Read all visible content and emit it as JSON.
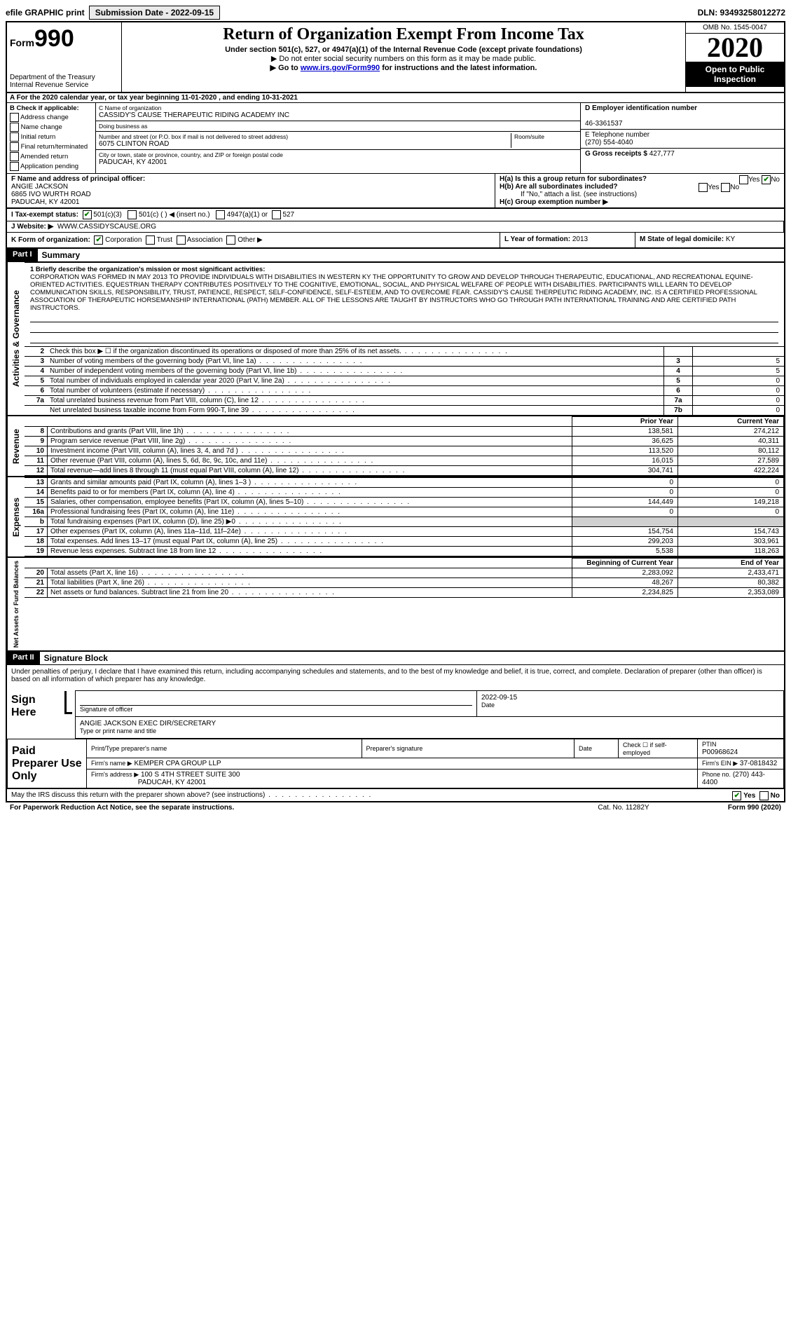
{
  "top": {
    "efile": "efile GRAPHIC print",
    "submission_label": "Submission Date - 2022-09-15",
    "dln": "DLN: 93493258012272"
  },
  "header": {
    "form_prefix": "Form",
    "form_number": "990",
    "dept1": "Department of the Treasury",
    "dept2": "Internal Revenue Service",
    "title": "Return of Organization Exempt From Income Tax",
    "sub": "Under section 501(c), 527, or 4947(a)(1) of the Internal Revenue Code (except private foundations)",
    "note1": "▶ Do not enter social security numbers on this form as it may be made public.",
    "note2_pre": "▶ Go to ",
    "note2_link": "www.irs.gov/Form990",
    "note2_post": " for instructions and the latest information.",
    "omb": "OMB No. 1545-0047",
    "year": "2020",
    "open": "Open to Public Inspection"
  },
  "period": "A For the 2020 calendar year, or tax year beginning 11-01-2020   , and ending 10-31-2021",
  "B": {
    "label": "B Check if applicable:",
    "opts": [
      "Address change",
      "Name change",
      "Initial return",
      "Final return/terminated",
      "Amended return",
      "Application pending"
    ]
  },
  "C": {
    "name_label": "C Name of organization",
    "name": "CASSIDY'S CAUSE THERAPEUTIC RIDING ACADEMY INC",
    "dba_label": "Doing business as",
    "addr_label": "Number and street (or P.O. box if mail is not delivered to street address)",
    "room_label": "Room/suite",
    "addr": "6075 CLINTON ROAD",
    "city_label": "City or town, state or province, country, and ZIP or foreign postal code",
    "city": "PADUCAH, KY  42001"
  },
  "D": {
    "label": "D Employer identification number",
    "val": "46-3361537"
  },
  "E": {
    "label": "E Telephone number",
    "val": "(270) 554-4040"
  },
  "G": {
    "label": "G Gross receipts $",
    "val": "427,777"
  },
  "F": {
    "label": "F  Name and address of principal officer:",
    "name": "ANGIE JACKSON",
    "addr1": "6865 IVO WURTH ROAD",
    "addr2": "PADUCAH, KY  42001"
  },
  "H": {
    "a": "H(a)  Is this a group return for subordinates?",
    "b": "H(b)  Are all subordinates included?",
    "note": "If \"No,\" attach a list. (see instructions)",
    "c": "H(c)  Group exemption number ▶",
    "yes": "Yes",
    "no": "No"
  },
  "I": {
    "label": "I   Tax-exempt status:",
    "opts": [
      "501(c)(3)",
      "501(c) (  ) ◀ (insert no.)",
      "4947(a)(1) or",
      "527"
    ]
  },
  "J": {
    "label": "J   Website: ▶",
    "val": "WWW.CASSIDYSCAUSE.ORG"
  },
  "K": {
    "label": "K Form of organization:",
    "opts": [
      "Corporation",
      "Trust",
      "Association",
      "Other ▶"
    ]
  },
  "L": {
    "label": "L Year of formation:",
    "val": "2013"
  },
  "M": {
    "label": "M State of legal domicile:",
    "val": "KY"
  },
  "part1": {
    "header": "Part I",
    "title": "Summary",
    "q1": "1  Briefly describe the organization's mission or most significant activities:",
    "mission": "CORPORATION WAS FORMED IN MAY 2013 TO PROVIDE INDIVIDUALS WITH DISABILITIES IN WESTERN KY THE OPPORTUNITY TO GROW AND DEVELOP THROUGH THERAPEUTIC, EDUCATIONAL, AND RECREATIONAL EQUINE-ORIENTED ACTIVITIES. EQUESTRIAN THERAPY CONTRIBUTES POSITIVELY TO THE COGNITIVE, EMOTIONAL, SOCIAL, AND PHYSICAL WELFARE OF PEOPLE WITH DISABILITIES. PARTICIPANTS WILL LEARN TO DEVELOP COMMUNICATION SKILLS, RESPONSIBILITY, TRUST, PATIENCE, RESPECT, SELF-CONFIDENCE, SELF-ESTEEM, AND TO OVERCOME FEAR. CASSIDY'S CAUSE THERPEUTIC RIDING ACADEMY, INC. IS A CERTIFIED PROFESSIONAL ASSOCIATION OF THERAPEUTIC HORSEMANSHIP INTERNATIONAL (PATH) MEMBER. ALL OF THE LESSONS ARE TAUGHT BY INSTRUCTORS WHO GO THROUGH PATH INTERNATIONAL TRAINING AND ARE CERTIFIED PATH INSTRUCTORS."
  },
  "side": {
    "gov": "Activities & Governance",
    "rev": "Revenue",
    "exp": "Expenses",
    "net": "Net Assets or Fund Balances"
  },
  "gov_lines": [
    {
      "n": "2",
      "d": "Check this box ▶ ☐ if the organization discontinued its operations or disposed of more than 25% of its net assets.",
      "box": "",
      "v": ""
    },
    {
      "n": "3",
      "d": "Number of voting members of the governing body (Part VI, line 1a)",
      "box": "3",
      "v": "5"
    },
    {
      "n": "4",
      "d": "Number of independent voting members of the governing body (Part VI, line 1b)",
      "box": "4",
      "v": "5"
    },
    {
      "n": "5",
      "d": "Total number of individuals employed in calendar year 2020 (Part V, line 2a)",
      "box": "5",
      "v": "0"
    },
    {
      "n": "6",
      "d": "Total number of volunteers (estimate if necessary)",
      "box": "6",
      "v": "0"
    },
    {
      "n": "7a",
      "d": "Total unrelated business revenue from Part VIII, column (C), line 12",
      "box": "7a",
      "v": "0"
    },
    {
      "n": "",
      "d": "Net unrelated business taxable income from Form 990-T, line 39",
      "box": "7b",
      "v": "0"
    }
  ],
  "fin_headers": {
    "py": "Prior Year",
    "cy": "Current Year"
  },
  "rev_lines": [
    {
      "n": "8",
      "d": "Contributions and grants (Part VIII, line 1h)",
      "py": "138,581",
      "cy": "274,212"
    },
    {
      "n": "9",
      "d": "Program service revenue (Part VIII, line 2g)",
      "py": "36,625",
      "cy": "40,311"
    },
    {
      "n": "10",
      "d": "Investment income (Part VIII, column (A), lines 3, 4, and 7d )",
      "py": "113,520",
      "cy": "80,112"
    },
    {
      "n": "11",
      "d": "Other revenue (Part VIII, column (A), lines 5, 6d, 8c, 9c, 10c, and 11e)",
      "py": "16,015",
      "cy": "27,589"
    },
    {
      "n": "12",
      "d": "Total revenue—add lines 8 through 11 (must equal Part VIII, column (A), line 12)",
      "py": "304,741",
      "cy": "422,224"
    }
  ],
  "exp_lines": [
    {
      "n": "13",
      "d": "Grants and similar amounts paid (Part IX, column (A), lines 1–3 )",
      "py": "0",
      "cy": "0"
    },
    {
      "n": "14",
      "d": "Benefits paid to or for members (Part IX, column (A), line 4)",
      "py": "0",
      "cy": "0"
    },
    {
      "n": "15",
      "d": "Salaries, other compensation, employee benefits (Part IX, column (A), lines 5–10)",
      "py": "144,449",
      "cy": "149,218"
    },
    {
      "n": "16a",
      "d": "Professional fundraising fees (Part IX, column (A), line 11e)",
      "py": "0",
      "cy": "0"
    },
    {
      "n": "b",
      "d": "Total fundraising expenses (Part IX, column (D), line 25) ▶0",
      "py": "",
      "cy": "",
      "shade": true
    },
    {
      "n": "17",
      "d": "Other expenses (Part IX, column (A), lines 11a–11d, 11f–24e)",
      "py": "154,754",
      "cy": "154,743"
    },
    {
      "n": "18",
      "d": "Total expenses. Add lines 13–17 (must equal Part IX, column (A), line 25)",
      "py": "299,203",
      "cy": "303,961"
    },
    {
      "n": "19",
      "d": "Revenue less expenses. Subtract line 18 from line 12",
      "py": "5,538",
      "cy": "118,263"
    }
  ],
  "net_headers": {
    "py": "Beginning of Current Year",
    "cy": "End of Year"
  },
  "net_lines": [
    {
      "n": "20",
      "d": "Total assets (Part X, line 16)",
      "py": "2,283,092",
      "cy": "2,433,471"
    },
    {
      "n": "21",
      "d": "Total liabilities (Part X, line 26)",
      "py": "48,267",
      "cy": "80,382"
    },
    {
      "n": "22",
      "d": "Net assets or fund balances. Subtract line 21 from line 20",
      "py": "2,234,825",
      "cy": "2,353,089"
    }
  ],
  "part2": {
    "header": "Part II",
    "title": "Signature Block",
    "penalty": "Under penalties of perjury, I declare that I have examined this return, including accompanying schedules and statements, and to the best of my knowledge and belief, it is true, correct, and complete. Declaration of preparer (other than officer) is based on all information of which preparer has any knowledge."
  },
  "sign": {
    "here": "Sign Here",
    "sig_of_officer": "Signature of officer",
    "date": "Date",
    "date_val": "2022-09-15",
    "name_title": "ANGIE JACKSON  EXEC DIR/SECRETARY",
    "type_label": "Type or print name and title"
  },
  "prep": {
    "label": "Paid Preparer Use Only",
    "print_label": "Print/Type preparer's name",
    "sig_label": "Preparer's signature",
    "date_label": "Date",
    "check_label": "Check ☐ if self-employed",
    "ptin_label": "PTIN",
    "ptin": "P00968624",
    "firm_name_label": "Firm's name    ▶",
    "firm_name": "KEMPER CPA GROUP LLP",
    "ein_label": "Firm's EIN ▶",
    "ein": "37-0818432",
    "addr_label": "Firm's address ▶",
    "addr1": "100 S 4TH STREET SUITE 300",
    "addr2": "PADUCAH, KY  42001",
    "phone_label": "Phone no.",
    "phone": "(270) 443-4400"
  },
  "discuss": {
    "q": "May the IRS discuss this return with the preparer shown above? (see instructions)",
    "yes": "Yes",
    "no": "No"
  },
  "footer": {
    "left": "For Paperwork Reduction Act Notice, see the separate instructions.",
    "mid": "Cat. No. 11282Y",
    "right": "Form 990 (2020)"
  }
}
